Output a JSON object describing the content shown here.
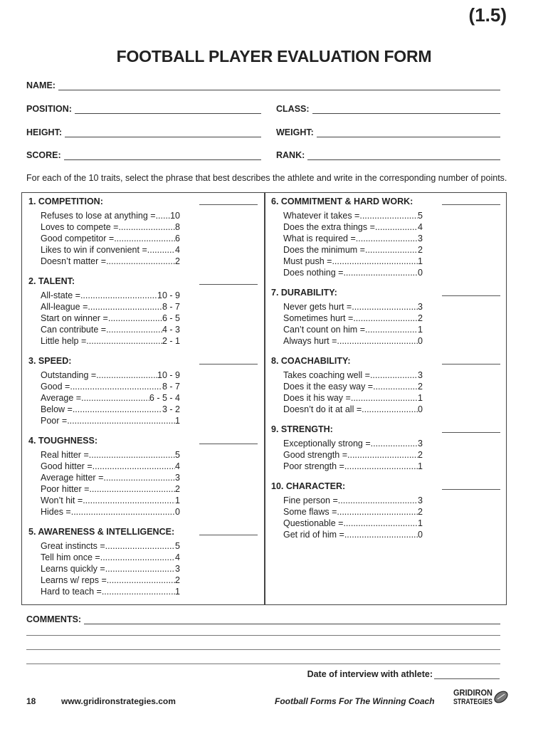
{
  "page_label": "(1.5)",
  "title": "FOOTBALL PLAYER EVALUATION FORM",
  "fields": {
    "name": "NAME:",
    "position": "POSITION:",
    "class": "CLASS:",
    "height": "HEIGHT:",
    "weight": "WEIGHT:",
    "score": "SCORE:",
    "rank": "RANK:"
  },
  "instructions": "For each of the 10 traits, select the phrase that best describes the athlete and write in the corresponding number of points.",
  "left_sections": [
    {
      "heading": "1. COMPETITION:",
      "items": [
        [
          "Refuses to lose at anything =",
          "10"
        ],
        [
          "Loves to compete = ",
          "8"
        ],
        [
          "Good competitor = ",
          "6"
        ],
        [
          "Likes to win if convenient =",
          "4"
        ],
        [
          "Doesn’t matter = ",
          "2"
        ]
      ]
    },
    {
      "heading": "2. TALENT:",
      "items": [
        [
          "All-state =",
          "10 - 9"
        ],
        [
          "All-league = ",
          "8 - 7"
        ],
        [
          "Start on winner = ",
          "6 - 5"
        ],
        [
          "Can contribute = ",
          "4 - 3"
        ],
        [
          "Little help = ",
          "2 - 1"
        ]
      ]
    },
    {
      "heading": "3. SPEED:",
      "items": [
        [
          "Outstanding = ",
          "10 - 9"
        ],
        [
          "Good =",
          "8 - 7"
        ],
        [
          "Average = ",
          "6 - 5 - 4"
        ],
        [
          "Below = ",
          "3 - 2"
        ],
        [
          "Poor = ",
          "1"
        ]
      ]
    },
    {
      "heading": "4. TOUGHNESS:",
      "items": [
        [
          "Real hitter = ",
          "5"
        ],
        [
          "Good hitter =",
          "4"
        ],
        [
          "Average hitter =",
          "3"
        ],
        [
          "Poor hitter = ",
          "2"
        ],
        [
          "Won’t hit = ",
          "1"
        ],
        [
          "Hides = ",
          "0"
        ]
      ]
    },
    {
      "heading": "5. AWARENESS & INTELLIGENCE:",
      "items": [
        [
          "Great instincts = ",
          "5"
        ],
        [
          "Tell him once = ",
          "4"
        ],
        [
          "Learns quickly = ",
          "3"
        ],
        [
          "Learns w/ reps = ",
          "2"
        ],
        [
          "Hard to teach = ",
          "1"
        ]
      ]
    }
  ],
  "right_sections": [
    {
      "heading": "6. COMMITMENT & HARD WORK:",
      "items": [
        [
          "Whatever it takes = ",
          "5"
        ],
        [
          "Does the extra things =",
          "4"
        ],
        [
          "What is required = ",
          "3"
        ],
        [
          "Does the minimum = ",
          "2"
        ],
        [
          "Must push = ",
          "1"
        ],
        [
          "Does nothing = ",
          "0"
        ]
      ]
    },
    {
      "heading": "7. DURABILITY:",
      "items": [
        [
          "Never gets hurt = ",
          "3"
        ],
        [
          "Sometimes hurt = ",
          "2"
        ],
        [
          "Can’t count on him =",
          "1"
        ],
        [
          "Always hurt = ",
          "0"
        ]
      ]
    },
    {
      "heading": "8. COACHABILITY:",
      "items": [
        [
          "Takes coaching well =",
          "3"
        ],
        [
          "Does it the easy way = ",
          "2"
        ],
        [
          "Does it his way =",
          "1"
        ],
        [
          "Doesn’t do it at all = ",
          "0"
        ]
      ]
    },
    {
      "heading": "9. STRENGTH:",
      "items": [
        [
          "Exceptionally strong = ",
          "3"
        ],
        [
          "Good strength = ",
          "2"
        ],
        [
          "Poor strength = ",
          "1"
        ]
      ]
    },
    {
      "heading": "10. CHARACTER:",
      "items": [
        [
          "Fine person = ",
          "3"
        ],
        [
          "Some flaws = ",
          "2"
        ],
        [
          "Questionable = ",
          "1"
        ],
        [
          "Get rid of him = ",
          "0"
        ]
      ]
    }
  ],
  "comments_label": "COMMENTS:",
  "date_label": "Date of interview with athlete:",
  "footer": {
    "page_number": "18",
    "website": "www.gridironstrategies.com",
    "tagline": "Football Forms For The Winning Coach",
    "logo_text": [
      "GRIDIRON",
      "STRATEGIES"
    ]
  }
}
